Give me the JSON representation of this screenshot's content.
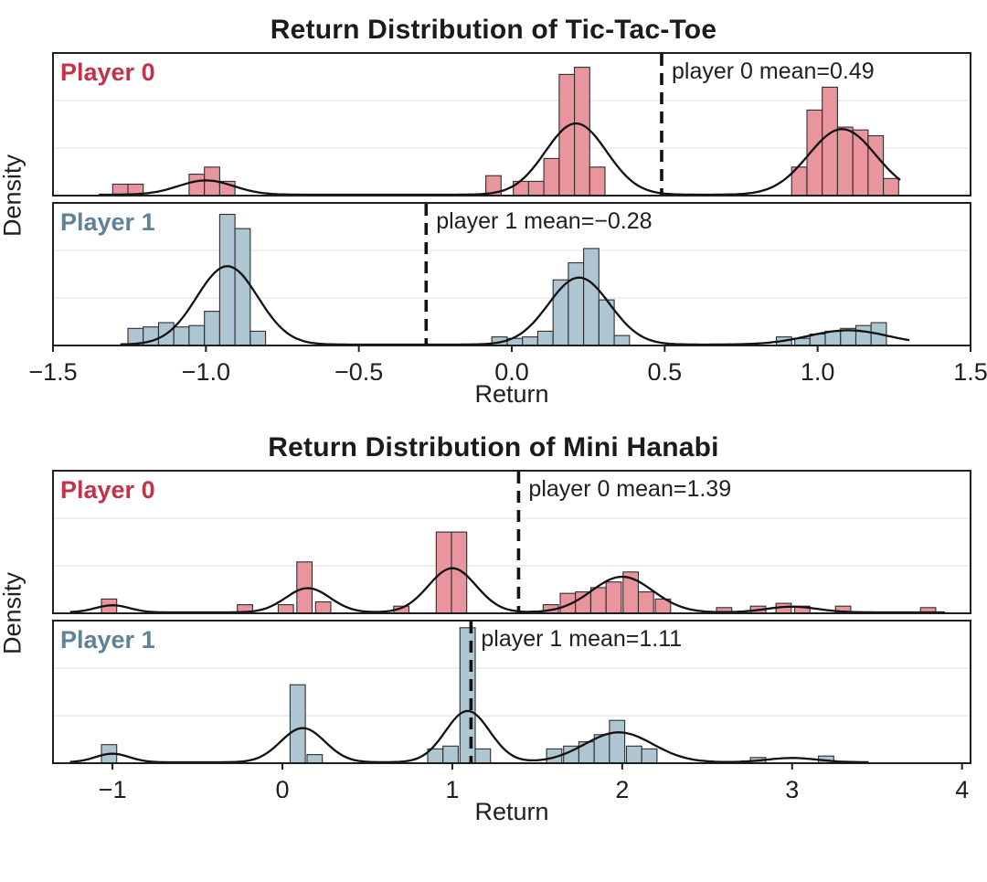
{
  "colors": {
    "bar_edge": "#2e2e2e",
    "kde": "#111111",
    "mean_line": "#111111",
    "grid": "#eaeaea",
    "spine": "#1f1f1f",
    "text": "#1f1f1f",
    "background": "#ffffff"
  },
  "chart_data": [
    {
      "type": "histogram",
      "title": "Return Distribution of Tic-Tac-Toe",
      "xlabel": "Return",
      "ylabel": "Density",
      "x_domain": [
        -1.5,
        1.5
      ],
      "x_ticks": [
        -1.5,
        -1.0,
        -0.5,
        0.0,
        0.5,
        1.0,
        1.5
      ],
      "x_tick_labels": [
        "−1.5",
        "−1.0",
        "−0.5",
        "0.0",
        "0.5",
        "1.0",
        "1.5"
      ],
      "grid": "horizontal",
      "legend_position": "none",
      "panels": [
        {
          "player_label": "Player 0",
          "fill_color": "#e9959d",
          "label_color": "#c2324a",
          "mean": 0.49,
          "mean_label": "player 0 mean=0.49",
          "bin_width": 0.05,
          "bars": [
            [
              -1.28,
              0.08
            ],
            [
              -1.23,
              0.08
            ],
            [
              -1.03,
              0.15
            ],
            [
              -0.98,
              0.2
            ],
            [
              -0.93,
              0.1
            ],
            [
              -0.06,
              0.14
            ],
            [
              0.03,
              0.1
            ],
            [
              0.08,
              0.1
            ],
            [
              0.13,
              0.26
            ],
            [
              0.18,
              0.85
            ],
            [
              0.23,
              0.9
            ],
            [
              0.28,
              0.2
            ],
            [
              0.94,
              0.2
            ],
            [
              0.99,
              0.6
            ],
            [
              1.04,
              0.76
            ],
            [
              1.09,
              0.48
            ],
            [
              1.14,
              0.46
            ],
            [
              1.19,
              0.42
            ],
            [
              1.24,
              0.12
            ]
          ],
          "kde_range": [
            -1.35,
            1.27
          ],
          "kde": [
            {
              "mu": -1.0,
              "sigma": 0.09,
              "amp": 0.1
            },
            {
              "mu": 0.21,
              "sigma": 0.1,
              "amp": 0.5
            },
            {
              "mu": 1.08,
              "sigma": 0.11,
              "amp": 0.46
            }
          ]
        },
        {
          "player_label": "Player 1",
          "fill_color": "#aec5d2",
          "label_color": "#5d8299",
          "mean": -0.28,
          "mean_label": "player 1 mean=−0.28",
          "bin_width": 0.05,
          "bars": [
            [
              -1.23,
              0.12
            ],
            [
              -1.18,
              0.13
            ],
            [
              -1.13,
              0.16
            ],
            [
              -1.08,
              0.13
            ],
            [
              -1.03,
              0.14
            ],
            [
              -0.98,
              0.24
            ],
            [
              -0.93,
              0.92
            ],
            [
              -0.88,
              0.82
            ],
            [
              -0.83,
              0.1
            ],
            [
              -0.04,
              0.06
            ],
            [
              0.01,
              0.05
            ],
            [
              0.06,
              0.06
            ],
            [
              0.11,
              0.1
            ],
            [
              0.16,
              0.46
            ],
            [
              0.21,
              0.58
            ],
            [
              0.26,
              0.68
            ],
            [
              0.31,
              0.32
            ],
            [
              0.36,
              0.07
            ],
            [
              0.89,
              0.06
            ],
            [
              0.95,
              0.05
            ],
            [
              1.0,
              0.08
            ],
            [
              1.05,
              0.1
            ],
            [
              1.1,
              0.12
            ],
            [
              1.15,
              0.14
            ],
            [
              1.2,
              0.16
            ]
          ],
          "kde_range": [
            -1.28,
            1.3
          ],
          "kde": [
            {
              "mu": -0.93,
              "sigma": 0.1,
              "amp": 0.55
            },
            {
              "mu": 0.22,
              "sigma": 0.1,
              "amp": 0.47
            },
            {
              "mu": 1.1,
              "sigma": 0.13,
              "amp": 0.1
            }
          ]
        }
      ]
    },
    {
      "type": "histogram",
      "title": "Return Distribution of Mini Hanabi",
      "xlabel": "Return",
      "ylabel": "Density",
      "x_domain": [
        -1.35,
        4.05
      ],
      "x_ticks": [
        -1,
        0,
        1,
        2,
        3,
        4
      ],
      "x_tick_labels": [
        "−1",
        "0",
        "1",
        "2",
        "3",
        "4"
      ],
      "grid": "horizontal",
      "legend_position": "none",
      "panels": [
        {
          "player_label": "Player 0",
          "fill_color": "#e9959d",
          "label_color": "#c2324a",
          "mean": 1.39,
          "mean_label": "player 0 mean=1.39",
          "bin_width": 0.09,
          "bars": [
            [
              -1.02,
              0.1
            ],
            [
              -0.22,
              0.06
            ],
            [
              0.02,
              0.06
            ],
            [
              0.13,
              0.36
            ],
            [
              0.24,
              0.08
            ],
            [
              0.7,
              0.05
            ],
            [
              0.95,
              0.57
            ],
            [
              1.04,
              0.57
            ],
            [
              1.58,
              0.06
            ],
            [
              1.68,
              0.14
            ],
            [
              1.77,
              0.15
            ],
            [
              1.86,
              0.18
            ],
            [
              1.95,
              0.22
            ],
            [
              2.05,
              0.29
            ],
            [
              2.14,
              0.15
            ],
            [
              2.24,
              0.1
            ],
            [
              2.6,
              0.04
            ],
            [
              2.8,
              0.05
            ],
            [
              2.95,
              0.07
            ],
            [
              3.06,
              0.05
            ],
            [
              3.3,
              0.05
            ],
            [
              3.8,
              0.04
            ]
          ],
          "kde_range": [
            -1.25,
            3.9
          ],
          "kde": [
            {
              "mu": -1.0,
              "sigma": 0.1,
              "amp": 0.05
            },
            {
              "mu": 0.15,
              "sigma": 0.13,
              "amp": 0.17
            },
            {
              "mu": 1.0,
              "sigma": 0.14,
              "amp": 0.31
            },
            {
              "mu": 2.0,
              "sigma": 0.18,
              "amp": 0.25
            },
            {
              "mu": 3.0,
              "sigma": 0.15,
              "amp": 0.04
            }
          ]
        },
        {
          "player_label": "Player 1",
          "fill_color": "#aec5d2",
          "label_color": "#5d8299",
          "mean": 1.11,
          "mean_label": "player 1 mean=1.11",
          "bin_width": 0.09,
          "bars": [
            [
              -1.02,
              0.13
            ],
            [
              0.09,
              0.55
            ],
            [
              0.19,
              0.06
            ],
            [
              0.9,
              0.1
            ],
            [
              0.99,
              0.12
            ],
            [
              1.09,
              0.95
            ],
            [
              1.18,
              0.1
            ],
            [
              1.6,
              0.1
            ],
            [
              1.7,
              0.12
            ],
            [
              1.79,
              0.15
            ],
            [
              1.88,
              0.2
            ],
            [
              1.97,
              0.3
            ],
            [
              2.07,
              0.12
            ],
            [
              2.16,
              0.1
            ],
            [
              2.8,
              0.04
            ],
            [
              3.2,
              0.05
            ]
          ],
          "kde_range": [
            -1.25,
            3.45
          ],
          "kde": [
            {
              "mu": -1.0,
              "sigma": 0.1,
              "amp": 0.06
            },
            {
              "mu": 0.12,
              "sigma": 0.13,
              "amp": 0.24
            },
            {
              "mu": 1.09,
              "sigma": 0.13,
              "amp": 0.36
            },
            {
              "mu": 1.98,
              "sigma": 0.2,
              "amp": 0.21
            },
            {
              "mu": 3.0,
              "sigma": 0.15,
              "amp": 0.03
            }
          ]
        }
      ]
    }
  ]
}
